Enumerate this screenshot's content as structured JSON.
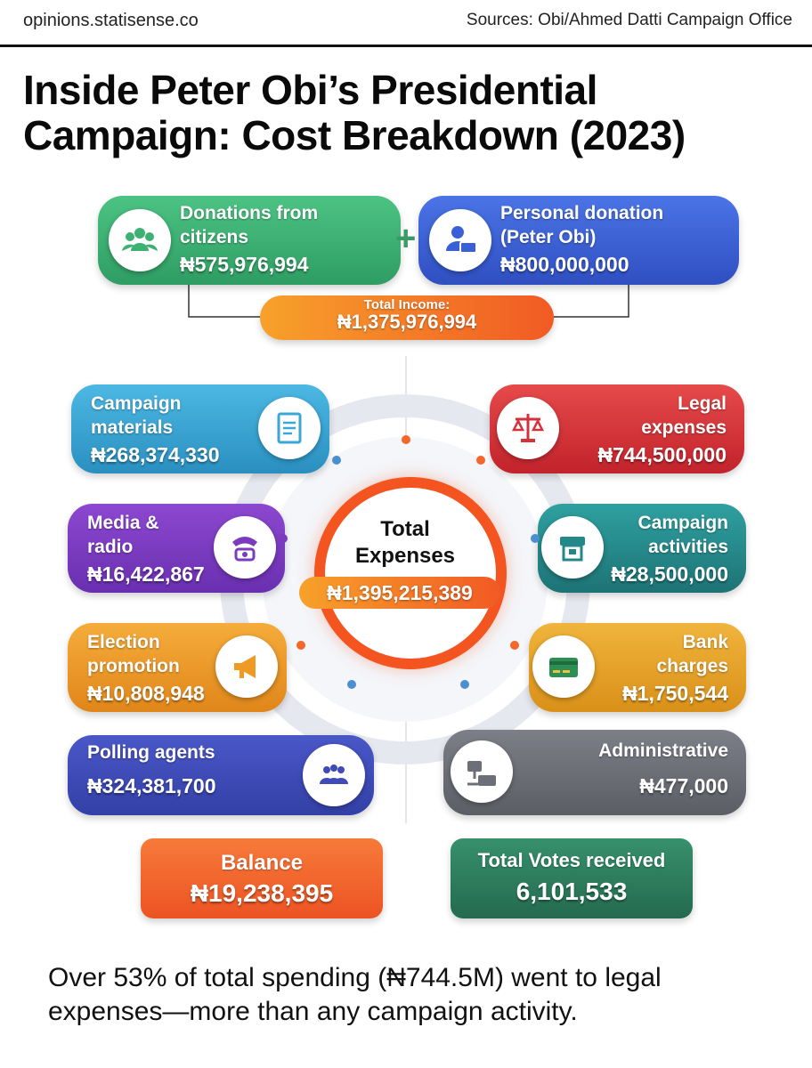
{
  "header": {
    "site": "opinions.statisense.co",
    "sources": "Sources: Obi/Ahmed Datti Campaign Office"
  },
  "title": "Inside Peter Obi’s Presidential Campaign: Cost Breakdown (2023)",
  "colors": {
    "donations": "#3cb173",
    "personal": "#3a5fd6",
    "income": "#f57a22",
    "materials": "#3aa7d6",
    "media": "#7b3bbf",
    "election": "#f09a26",
    "polling": "#3f4bb8",
    "legal": "#d8303a",
    "activities": "#23888a",
    "bank": "#e8a62c",
    "admin": "#6d6f78",
    "balance": "#f4662a",
    "votes": "#2e7d5e"
  },
  "chart_data": {
    "type": "table",
    "title": "Inside Peter Obi’s Presidential Campaign: Cost Breakdown (2023)",
    "income": [
      {
        "label": "Donations from citizens",
        "amount": "₦575,976,994",
        "value": 575976994
      },
      {
        "label": "Personal donation (Peter Obi)",
        "amount": "₦800,000,000",
        "value": 800000000
      }
    ],
    "total_income": {
      "label": "Total Income:",
      "amount": "₦1,375,976,994",
      "value": 1375976994
    },
    "expenses": [
      {
        "label": "Campaign materials",
        "amount": "₦268,374,330",
        "value": 268374330,
        "side": "left",
        "icon": "document-icon"
      },
      {
        "label": "Media & radio",
        "amount": "₦16,422,867",
        "value": 16422867,
        "side": "left",
        "icon": "phone-icon"
      },
      {
        "label": "Election promotion",
        "amount": "₦10,808,948",
        "value": 10808948,
        "side": "left",
        "icon": "megaphone-icon"
      },
      {
        "label": "Polling agents",
        "amount": "₦324,381,700",
        "value": 324381700,
        "side": "left",
        "icon": "people-icon"
      },
      {
        "label": "Legal expenses",
        "amount": "₦744,500,000",
        "value": 744500000,
        "side": "right",
        "icon": "scales-icon"
      },
      {
        "label": "Campaign activities",
        "amount": "₦28,500,000",
        "value": 28500000,
        "side": "right",
        "icon": "podium-icon"
      },
      {
        "label": "Bank charges",
        "amount": "₦1,750,544",
        "value": 1750544,
        "side": "right",
        "icon": "card-icon"
      },
      {
        "label": "Administrative",
        "amount": "₦477,000",
        "value": 477000,
        "side": "right",
        "icon": "desk-icon"
      }
    ],
    "total_expenses": {
      "label": "Total Expenses",
      "amount": "₦1,395,215,389",
      "value": 1395215389
    },
    "balance": {
      "label": "Balance",
      "amount": "₦19,238,395",
      "value": 19238395
    },
    "votes": {
      "label": "Total Votes received",
      "amount": "6,101,533",
      "value": 6101533
    }
  },
  "footer": "Over 53% of total spending (₦744.5M) went to legal expenses—more than any campaign activity."
}
